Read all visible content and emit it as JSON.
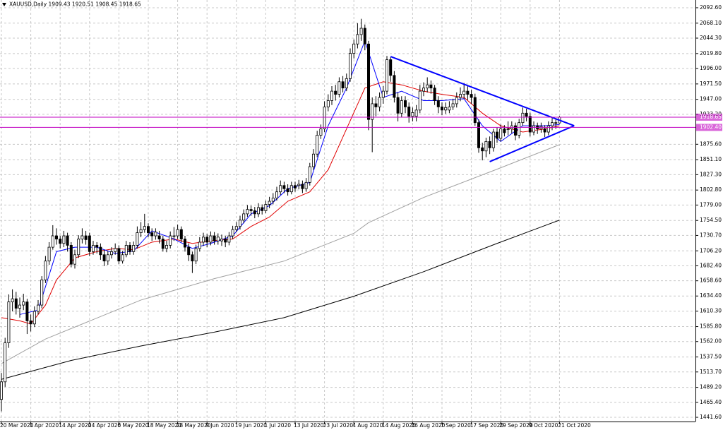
{
  "chart_data": {
    "type": "candlestick",
    "title": "XAUUSD,Daily  1909.43 1920.51 1908.45 1918.65",
    "categories": [
      "20 Mar 2020",
      null,
      null,
      null,
      null,
      null,
      null,
      null,
      "1 Apr 2020",
      null,
      null,
      null,
      null,
      null,
      null,
      null,
      "14 Apr 2020",
      null,
      null,
      null,
      null,
      null,
      null,
      null,
      "24 Apr 2020",
      null,
      null,
      null,
      null,
      null,
      null,
      null,
      "6 May 2020",
      null,
      null,
      null,
      null,
      null,
      null,
      null,
      "18 May 2020",
      null,
      null,
      null,
      null,
      null,
      null,
      null,
      "28 May 2020",
      null,
      null,
      null,
      null,
      null,
      null,
      null,
      "9 Jun 2020",
      null,
      null,
      null,
      null,
      null,
      null,
      null,
      "19 Jun 2020",
      null,
      null,
      null,
      null,
      null,
      null,
      null,
      "1 Jul 2020",
      null,
      null,
      null,
      null,
      null,
      null,
      null,
      "13 Jul 2020",
      null,
      null,
      null,
      null,
      null,
      null,
      null,
      "23 Jul 2020",
      null,
      null,
      null,
      null,
      null,
      null,
      null,
      "4 Aug 2020",
      null,
      null,
      null,
      null,
      null,
      null,
      null,
      "14 Aug 2020",
      null,
      null,
      null,
      null,
      null,
      null,
      null,
      "26 Aug 2020",
      null,
      null,
      null,
      null,
      null,
      null,
      null,
      "7 Sep 2020",
      null,
      null,
      null,
      null,
      null,
      null,
      null,
      "17 Sep 2020",
      null,
      null,
      null,
      null,
      null,
      null,
      null,
      "29 Sep 2020",
      null,
      null,
      null,
      null,
      null,
      null,
      null,
      "9 Oct 2020",
      null,
      null,
      null,
      null,
      null,
      null,
      null,
      "21 Oct 2020"
    ],
    "open": [
      1470,
      1498,
      1560,
      1625,
      1630,
      1615,
      1620,
      1625,
      1595,
      1590,
      1610,
      1620,
      1660,
      1690,
      1712,
      1730,
      1725,
      1718,
      1730,
      1715,
      1685,
      1700,
      1725,
      1730,
      1730,
      1705,
      1715,
      1712,
      1700,
      1690,
      1700,
      1705,
      1710,
      1690,
      1700,
      1715,
      1705,
      1715,
      1735,
      1740,
      1745,
      1735,
      1730,
      1730,
      1725,
      1710,
      1715,
      1730,
      1730,
      1740,
      1725,
      1712,
      1700,
      1690,
      1710,
      1720,
      1728,
      1720,
      1730,
      1722,
      1722,
      1725,
      1720,
      1730,
      1740,
      1745,
      1755,
      1765,
      1772,
      1770,
      1765,
      1775,
      1770,
      1780,
      1785,
      1790,
      1800,
      1810,
      1805,
      1800,
      1810,
      1810,
      1812,
      1805,
      1815,
      1840,
      1860,
      1890,
      1900,
      1935,
      1945,
      1960,
      1955,
      1975,
      1965,
      1980,
      2020,
      2035,
      2050,
      2060,
      2035,
      1915,
      1940,
      1935,
      1950,
      1960,
      2010,
      1985,
      1950,
      1925,
      1945,
      1935,
      1920,
      1920,
      1930,
      1960,
      1965,
      1970,
      1965,
      1945,
      1935,
      1930,
      1930,
      1935,
      1940,
      1950,
      1955,
      1960,
      1955,
      1950,
      1910,
      1870,
      1865,
      1880,
      1870,
      1895,
      1885,
      1900,
      1900,
      1900,
      1905,
      1890,
      1910,
      1925,
      1920,
      1895,
      1905,
      1900,
      1900,
      1895,
      1905,
      1910,
      1909.43
    ],
    "close": [
      1498,
      1560,
      1625,
      1630,
      1615,
      1620,
      1625,
      1595,
      1590,
      1610,
      1620,
      1660,
      1690,
      1712,
      1730,
      1725,
      1718,
      1730,
      1715,
      1685,
      1700,
      1725,
      1730,
      1724,
      1705,
      1715,
      1712,
      1700,
      1690,
      1700,
      1705,
      1710,
      1690,
      1700,
      1715,
      1705,
      1715,
      1735,
      1740,
      1745,
      1735,
      1730,
      1736,
      1725,
      1710,
      1715,
      1730,
      1730,
      1740,
      1725,
      1712,
      1700,
      1690,
      1710,
      1720,
      1728,
      1720,
      1730,
      1722,
      1728,
      1725,
      1720,
      1730,
      1740,
      1745,
      1755,
      1765,
      1772,
      1770,
      1765,
      1775,
      1770,
      1780,
      1785,
      1790,
      1800,
      1810,
      1805,
      1800,
      1810,
      1806,
      1812,
      1805,
      1815,
      1840,
      1860,
      1890,
      1900,
      1935,
      1945,
      1960,
      1955,
      1975,
      1965,
      1980,
      2020,
      2035,
      2050,
      2060,
      2035,
      1915,
      1940,
      1935,
      1950,
      1960,
      2010,
      1985,
      1950,
      1925,
      1945,
      1935,
      1920,
      1926,
      1930,
      1960,
      1965,
      1970,
      1965,
      1945,
      1935,
      1930,
      1934,
      1935,
      1940,
      1950,
      1955,
      1960,
      1955,
      1950,
      1910,
      1870,
      1865,
      1880,
      1870,
      1895,
      1885,
      1900,
      1894,
      1900,
      1905,
      1890,
      1910,
      1925,
      1920,
      1895,
      1905,
      1900,
      1904,
      1895,
      1905,
      1910,
      1909.43,
      1918.65
    ],
    "high": [
      1512,
      1568,
      1637,
      1645,
      1641,
      1632,
      1638,
      1630,
      1605,
      1618,
      1628,
      1666,
      1698,
      1720,
      1747,
      1742,
      1730,
      1738,
      1735,
      1720,
      1708,
      1731,
      1742,
      1738,
      1735,
      1722,
      1720,
      1718,
      1708,
      1706,
      1712,
      1718,
      1715,
      1706,
      1722,
      1720,
      1721,
      1745,
      1752,
      1765,
      1750,
      1742,
      1742,
      1738,
      1730,
      1722,
      1737,
      1744,
      1748,
      1745,
      1730,
      1718,
      1705,
      1716,
      1728,
      1735,
      1733,
      1737,
      1736,
      1734,
      1732,
      1730,
      1736,
      1746,
      1752,
      1762,
      1772,
      1779,
      1778,
      1776,
      1782,
      1780,
      1786,
      1792,
      1798,
      1808,
      1818,
      1816,
      1812,
      1816,
      1816,
      1819,
      1818,
      1822,
      1846,
      1868,
      1897,
      1907,
      1944,
      1955,
      1968,
      1970,
      1982,
      1984,
      1988,
      2028,
      2042,
      2068,
      2075,
      2066,
      2040,
      1950,
      1952,
      1958,
      1968,
      2016,
      2014,
      1992,
      1958,
      1952,
      1952,
      1942,
      1934,
      1938,
      1970,
      1974,
      1982,
      1977,
      1970,
      1952,
      1942,
      1942,
      1944,
      1948,
      1958,
      1966,
      1973,
      1968,
      1962,
      1956,
      1915,
      1878,
      1886,
      1888,
      1900,
      1902,
      1907,
      1906,
      1912,
      1912,
      1910,
      1916,
      1934,
      1932,
      1926,
      1912,
      1910,
      1910,
      1906,
      1912,
      1917,
      1915,
      1920.51
    ],
    "low": [
      1451,
      1490,
      1552,
      1610,
      1605,
      1600,
      1612,
      1574,
      1578,
      1585,
      1605,
      1615,
      1655,
      1684,
      1708,
      1716,
      1710,
      1712,
      1705,
      1680,
      1678,
      1695,
      1718,
      1716,
      1698,
      1700,
      1702,
      1692,
      1682,
      1684,
      1694,
      1700,
      1685,
      1686,
      1696,
      1700,
      1700,
      1710,
      1728,
      1735,
      1728,
      1722,
      1724,
      1718,
      1705,
      1704,
      1710,
      1722,
      1725,
      1720,
      1705,
      1690,
      1671,
      1685,
      1705,
      1714,
      1712,
      1715,
      1716,
      1716,
      1714,
      1712,
      1715,
      1725,
      1736,
      1740,
      1750,
      1760,
      1762,
      1758,
      1760,
      1764,
      1766,
      1774,
      1780,
      1786,
      1795,
      1798,
      1794,
      1796,
      1800,
      1804,
      1798,
      1800,
      1810,
      1835,
      1855,
      1884,
      1895,
      1928,
      1938,
      1945,
      1950,
      1958,
      1960,
      1975,
      2012,
      2028,
      2040,
      2025,
      1898,
      1863,
      1920,
      1928,
      1940,
      1955,
      1975,
      1942,
      1912,
      1918,
      1925,
      1910,
      1912,
      1912,
      1925,
      1952,
      1958,
      1956,
      1938,
      1925,
      1922,
      1924,
      1925,
      1930,
      1934,
      1944,
      1948,
      1946,
      1940,
      1905,
      1862,
      1850,
      1855,
      1860,
      1864,
      1878,
      1880,
      1888,
      1890,
      1893,
      1882,
      1885,
      1905,
      1912,
      1888,
      1890,
      1892,
      1894,
      1887,
      1890,
      1898,
      1900,
      1908.45
    ],
    "bull_color": "#ffffff",
    "bear_color": "#000000",
    "wick_color": "#000000",
    "overlays": [
      {
        "color": "#000000",
        "x": [
          0,
          19,
          38,
          58,
          77,
          96,
          115,
          135,
          152
        ],
        "values": [
          1502,
          1532,
          1555,
          1577,
          1600,
          1634,
          1673,
          1718,
          1755
        ]
      },
      {
        "color": "#a0a0a0",
        "x": [
          0,
          12,
          38,
          58,
          77,
          96,
          100,
          115,
          135,
          152
        ],
        "values": [
          1527,
          1566,
          1628,
          1662,
          1690,
          1734,
          1751,
          1791,
          1836,
          1875
        ]
      },
      {
        "color": "#e00000",
        "x": [
          0,
          5,
          8,
          12,
          15,
          20,
          26,
          31,
          36,
          41,
          47,
          52,
          57,
          63,
          68,
          73,
          78,
          84,
          89,
          94,
          99,
          104,
          109,
          115,
          120,
          126,
          131,
          136,
          142,
          148,
          152
        ],
        "values": [
          1600,
          1595,
          1590,
          1620,
          1660,
          1695,
          1705,
          1710,
          1708,
          1720,
          1725,
          1718,
          1722,
          1725,
          1745,
          1760,
          1785,
          1800,
          1835,
          1900,
          1965,
          1975,
          1970,
          1960,
          1955,
          1950,
          1925,
          1905,
          1895,
          1900,
          1905
        ]
      },
      {
        "color": "#0000ff",
        "x": [
          5,
          10,
          15,
          20,
          26,
          31,
          36,
          41,
          47,
          52,
          57,
          63,
          68,
          73,
          78,
          84,
          89,
          94,
          99,
          104,
          109,
          115,
          120,
          126,
          131,
          136,
          142,
          148,
          152
        ],
        "values": [
          1605,
          1612,
          1705,
          1712,
          1712,
          1702,
          1706,
          1738,
          1725,
          1710,
          1718,
          1730,
          1765,
          1778,
          1805,
          1815,
          1905,
          1965,
          2040,
          1950,
          1960,
          1945,
          1945,
          1948,
          1905,
          1880,
          1905,
          1905,
          1907
        ]
      }
    ],
    "trendline_color": "#0000ff",
    "trendlines": [
      {
        "x": [
          106,
          156
        ],
        "values": [
          2015,
          1905
        ]
      },
      {
        "x": [
          133,
          156
        ],
        "values": [
          1848,
          1905
        ]
      }
    ],
    "level_color": "#c000c0",
    "levels": [
      1918.65,
      {
        "value": 1902.4,
        "label": "1902.40"
      }
    ],
    "ylim": [
      1434.9,
      2104.9
    ],
    "yticks": [
      {
        "value": 2092.6,
        "label": "2092.60"
      },
      {
        "value": 2068.1,
        "label": "2068.10"
      },
      {
        "value": 2044.3,
        "label": "2044.30"
      },
      {
        "value": 2019.8,
        "label": "2019.80"
      },
      {
        "value": 1996,
        "label": "1996.00"
      },
      {
        "value": 1971.5,
        "label": "1971.50"
      },
      {
        "value": 1947,
        "label": "1947.00"
      },
      {
        "value": 1923.2,
        "label": "1923.20"
      },
      {
        "value": 1875.6,
        "label": "1875.60"
      },
      {
        "value": 1851.1,
        "label": "1851.10"
      },
      {
        "value": 1827.3,
        "label": "1827.30"
      },
      {
        "value": 1802.8,
        "label": "1802.80"
      },
      {
        "value": 1779,
        "label": "1779.00"
      },
      {
        "value": 1754.5,
        "label": "1754.50"
      },
      {
        "value": 1730.7,
        "label": "1730.70"
      },
      {
        "value": 1706.2,
        "label": "1706.20"
      },
      {
        "value": 1682.4,
        "label": "1682.40"
      },
      {
        "value": 1658.6,
        "label": "1658.60"
      },
      {
        "value": 1634.4,
        "label": "1634.40"
      },
      {
        "value": 1610.3,
        "label": "1610.30"
      },
      {
        "value": 1585.8,
        "label": "1585.80"
      },
      {
        "value": 1562,
        "label": "1562.00"
      },
      {
        "value": 1537.5,
        "label": "1537.50"
      },
      {
        "value": 1513.7,
        "label": "1513.70"
      },
      {
        "value": 1489.2,
        "label": "1489.20"
      },
      {
        "value": 1465.4,
        "label": "1465.40"
      },
      {
        "value": 1441.6,
        "label": "1441.60"
      }
    ],
    "grid": true
  }
}
